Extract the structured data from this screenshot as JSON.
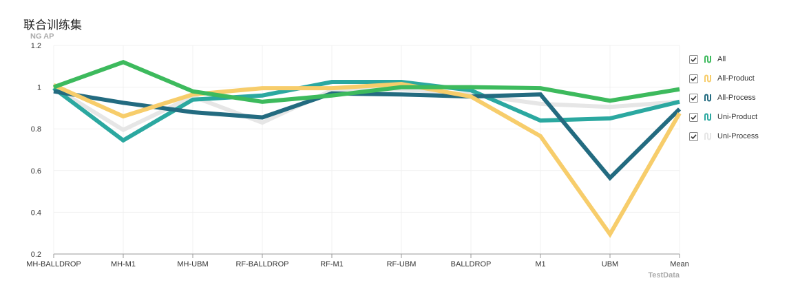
{
  "title": "联合训练集",
  "chart_data": {
    "type": "line",
    "ylabel": "NG AP",
    "xlabel": "TestData",
    "ylim": [
      0.2,
      1.2
    ],
    "yticks": [
      "1.2",
      "1",
      "0.8",
      "0.6",
      "0.4",
      "0.2"
    ],
    "categories": [
      "MH-BALLDROP",
      "MH-M1",
      "MH-UBM",
      "RF-BALLDROP",
      "RF-M1",
      "RF-UBM",
      "BALLDROP",
      "M1",
      "UBM",
      "Mean"
    ],
    "grid": true,
    "legend_position": "right",
    "series": [
      {
        "name": "All",
        "color": "#3dba5d",
        "values": [
          1.0,
          1.12,
          0.98,
          0.93,
          0.96,
          1.0,
          1.0,
          0.995,
          0.935,
          0.99
        ]
      },
      {
        "name": "All-Product",
        "color": "#f7cd6b",
        "values": [
          1.01,
          0.86,
          0.965,
          0.995,
          0.995,
          1.015,
          0.955,
          0.765,
          0.295,
          0.875
        ]
      },
      {
        "name": "All-Process",
        "color": "#236b80",
        "values": [
          0.98,
          0.925,
          0.88,
          0.855,
          0.97,
          0.965,
          0.955,
          0.965,
          0.565,
          0.895
        ]
      },
      {
        "name": "Uni-Product",
        "color": "#2ba8a0",
        "values": [
          0.995,
          0.745,
          0.94,
          0.96,
          1.025,
          1.025,
          0.985,
          0.84,
          0.85,
          0.93
        ]
      },
      {
        "name": "Uni-Process",
        "color": "#e6e6e6",
        "values": [
          1.0,
          0.795,
          0.955,
          0.83,
          0.985,
          0.99,
          0.965,
          0.92,
          0.905,
          0.93
        ]
      }
    ]
  }
}
